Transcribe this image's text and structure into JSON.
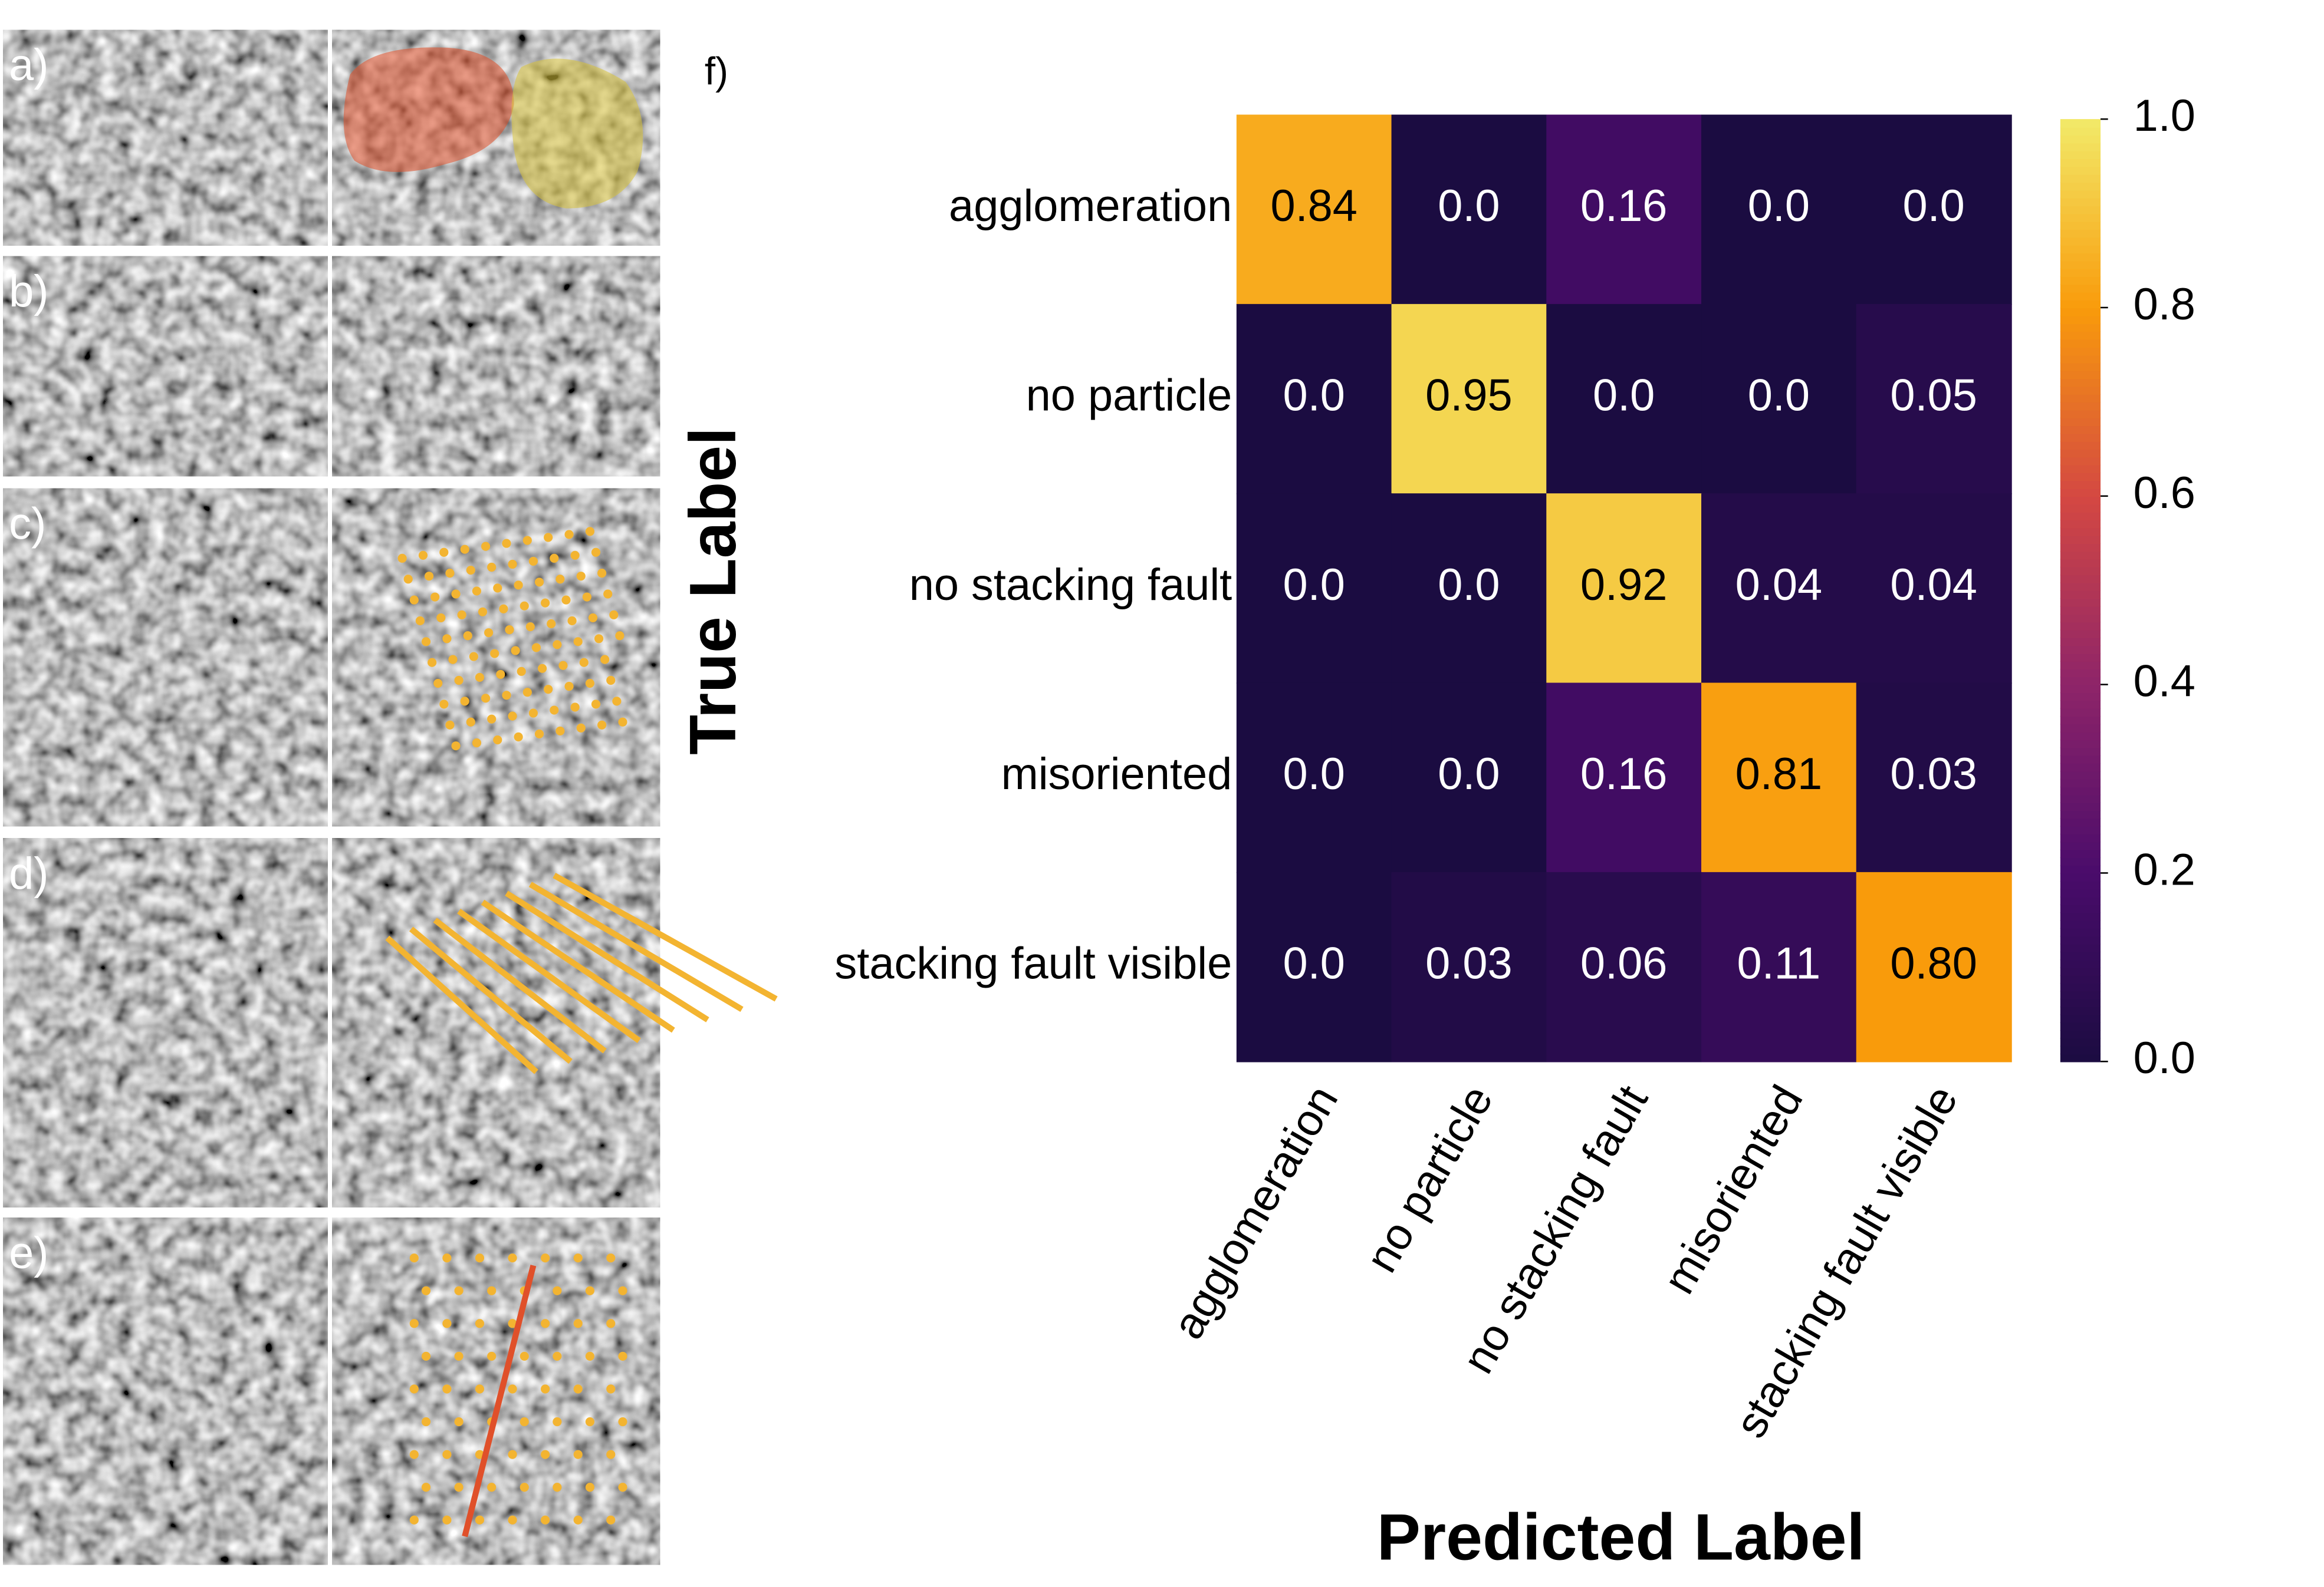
{
  "panels": [
    "a)",
    "b)",
    "c)",
    "d)",
    "e)"
  ],
  "chart_data": {
    "type": "heatmap",
    "label": "f)",
    "ylabel": "True Label",
    "xlabel": "Predicted Label",
    "categories": [
      "agglomeration",
      "no particle",
      "no stacking fault",
      "misoriented",
      "stacking fault visible"
    ],
    "values": [
      [
        0.84,
        0,
        0.16,
        0,
        0
      ],
      [
        0,
        0.95,
        0,
        0,
        0.05
      ],
      [
        0,
        0,
        0.92,
        0.04,
        0.04
      ],
      [
        0,
        0,
        0.16,
        0.81,
        0.03
      ],
      [
        0,
        0.03,
        0.06,
        0.11,
        0.8
      ]
    ],
    "value_labels": [
      [
        "0.84",
        "0.0",
        "0.16",
        "0.0",
        "0.0"
      ],
      [
        "0.0",
        "0.95",
        "0.0",
        "0.0",
        "0.05"
      ],
      [
        "0.0",
        "0.0",
        "0.92",
        "0.04",
        "0.04"
      ],
      [
        "0.0",
        "0.0",
        "0.16",
        "0.81",
        "0.03"
      ],
      [
        "0.0",
        "0.03",
        "0.06",
        "0.11",
        "0.80"
      ]
    ],
    "colormap": "inferno",
    "clim": [
      0,
      1
    ],
    "cticks": [
      {
        "value": 0,
        "label": "0.0"
      },
      0.2,
      0.4,
      0.6,
      0.8,
      {
        "value": 1,
        "label": "1.0"
      }
    ]
  }
}
